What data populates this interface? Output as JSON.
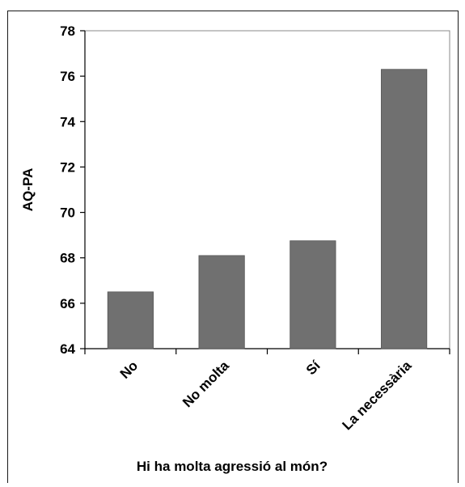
{
  "chart_data": {
    "type": "bar",
    "categories": [
      "No",
      "No molta",
      "Sí",
      "La necessària"
    ],
    "values": [
      66.5,
      68.1,
      68.75,
      76.3
    ],
    "xlabel": "Hi ha molta agressió al món?",
    "ylabel": "AQ-PA",
    "ylim": [
      64,
      78
    ],
    "yticks": [
      "64",
      "66",
      "68",
      "70",
      "72",
      "74",
      "76",
      "78"
    ],
    "grid": false,
    "legend": "none",
    "bar_color": "#707070"
  }
}
